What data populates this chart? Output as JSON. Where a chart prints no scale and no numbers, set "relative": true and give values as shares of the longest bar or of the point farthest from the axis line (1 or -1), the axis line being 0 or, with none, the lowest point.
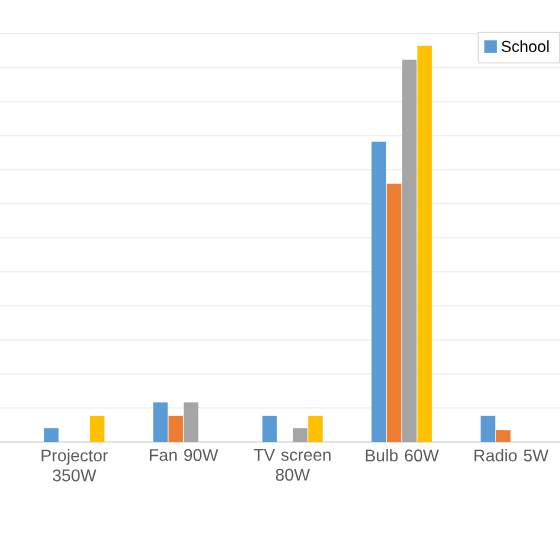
{
  "chart_data": {
    "type": "bar",
    "relative": true,
    "grid": "y",
    "legend": "top right",
    "categories": [
      "Projector 350W",
      "Fan 90W",
      "TV screen 80W",
      "Bulb 60W",
      "Radio 5W"
    ],
    "series": [
      {
        "name": "School",
        "color": "#5b9bd5",
        "values": [
          0.035,
          0.1,
          0.066,
          0.758,
          0.066
        ]
      },
      {
        "color": "#ed7d31",
        "values": [
          0,
          0.066,
          0,
          0.652,
          0.03
        ]
      },
      {
        "color": "#a5a5a5",
        "values": [
          0,
          0.1,
          0.035,
          0.965,
          null
        ]
      },
      {
        "color": "#ffc000",
        "values": [
          0.066,
          0,
          0.066,
          1,
          null
        ]
      }
    ]
  }
}
